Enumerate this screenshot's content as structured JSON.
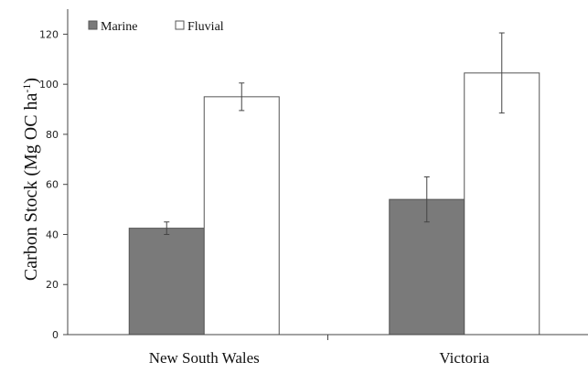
{
  "chart_data": {
    "type": "bar",
    "categories": [
      "New South Wales",
      "Victoria"
    ],
    "series": [
      {
        "name": "Marine",
        "values": [
          42.5,
          54
        ],
        "error": [
          2.5,
          9
        ],
        "color": "#7a7a7a"
      },
      {
        "name": "Fluvial",
        "values": [
          95,
          104.5
        ],
        "error": [
          5.5,
          16
        ],
        "color": "#ffffff"
      }
    ],
    "title": "",
    "xlabel": "",
    "ylabel": "Carbon Stock (Mg OC ha",
    "ylabel_sup": "-1",
    "ylabel_close": ")",
    "ylim": [
      0,
      130
    ],
    "yticks": [
      0,
      20,
      40,
      60,
      80,
      100,
      120
    ],
    "grid": false,
    "legend_position": "top-left"
  }
}
